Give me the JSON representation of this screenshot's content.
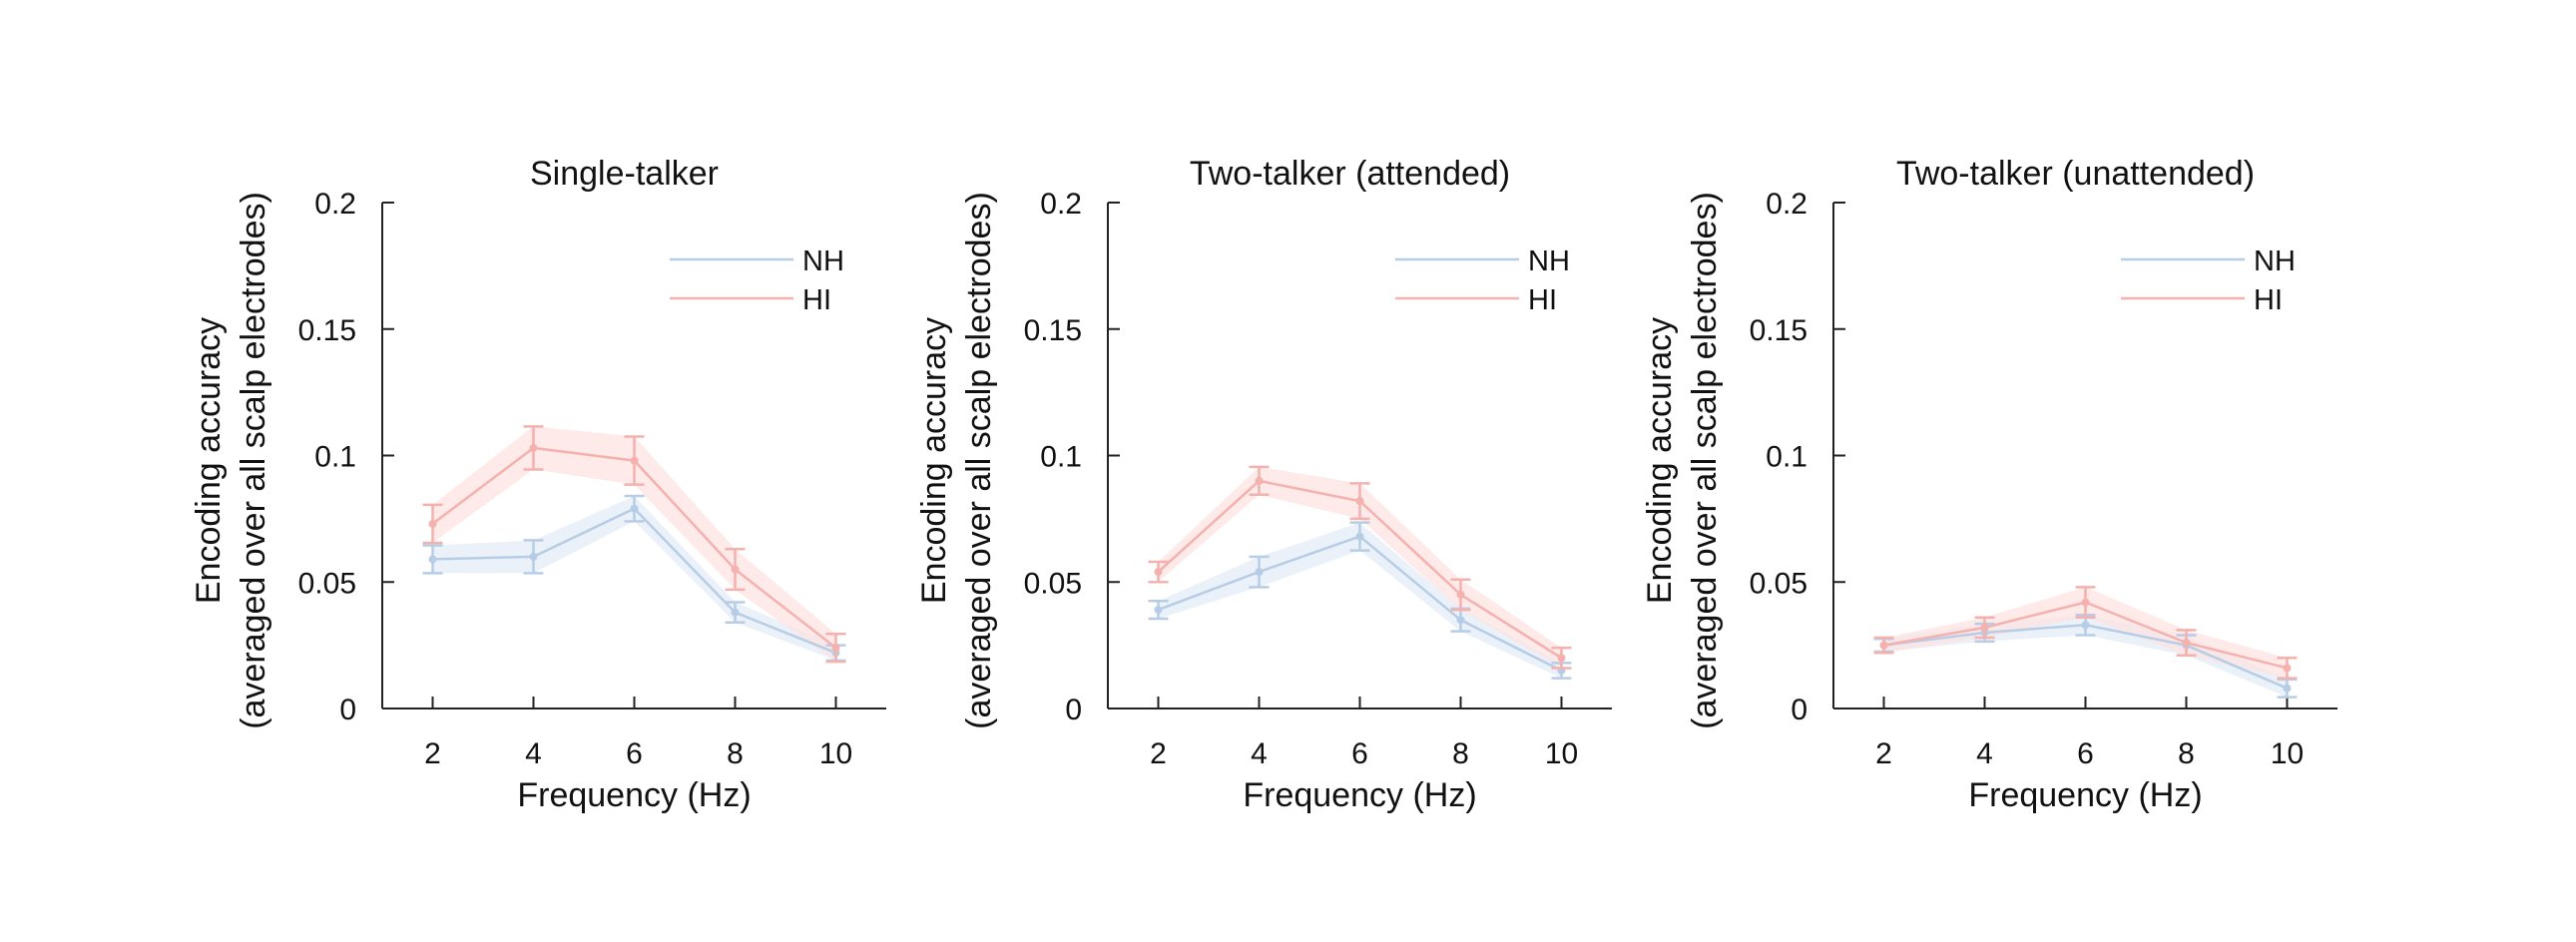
{
  "chart_data": [
    {
      "type": "line",
      "title": "Single-talker",
      "xlabel": "Frequency (Hz)",
      "ylabel": [
        "Encoding accuracy",
        "(averaged over all scalp electrodes)"
      ],
      "x": [
        2,
        4,
        6,
        8,
        10
      ],
      "xticks": [
        "2",
        "4",
        "6",
        "8",
        "10"
      ],
      "yticks": [
        "0",
        "0.05",
        "0.1",
        "0.15",
        "0.2"
      ],
      "xlim": [
        1,
        11
      ],
      "ylim": [
        0,
        0.2
      ],
      "legend_position": "top-right",
      "series": [
        {
          "name": "NH",
          "color": "#b7cde6",
          "band_color": "#e3ecf7",
          "values": [
            0.059,
            0.06,
            0.079,
            0.038,
            0.022
          ],
          "err": [
            0.0055,
            0.0065,
            0.005,
            0.004,
            0.003
          ]
        },
        {
          "name": "HI",
          "color": "#f4b1ae",
          "band_color": "#fce3e2",
          "values": [
            0.073,
            0.103,
            0.098,
            0.055,
            0.024
          ],
          "err": [
            0.0075,
            0.0085,
            0.0095,
            0.008,
            0.0055
          ]
        }
      ]
    },
    {
      "type": "line",
      "title": "Two-talker (attended)",
      "xlabel": "Frequency (Hz)",
      "ylabel": [
        "Encoding accuracy",
        "(averaged over all scalp electrodes)"
      ],
      "x": [
        2,
        4,
        6,
        8,
        10
      ],
      "xticks": [
        "2",
        "4",
        "6",
        "8",
        "10"
      ],
      "yticks": [
        "0",
        "0.05",
        "0.1",
        "0.15",
        "0.2"
      ],
      "xlim": [
        1,
        11
      ],
      "ylim": [
        0,
        0.2
      ],
      "legend_position": "top-right",
      "series": [
        {
          "name": "NH",
          "color": "#b7cde6",
          "band_color": "#e3ecf7",
          "values": [
            0.039,
            0.054,
            0.068,
            0.035,
            0.015
          ],
          "err": [
            0.0035,
            0.006,
            0.0055,
            0.0045,
            0.003
          ]
        },
        {
          "name": "HI",
          "color": "#f4b1ae",
          "band_color": "#fce3e2",
          "values": [
            0.054,
            0.09,
            0.082,
            0.045,
            0.02
          ],
          "err": [
            0.004,
            0.0055,
            0.007,
            0.006,
            0.004
          ]
        }
      ]
    },
    {
      "type": "line",
      "title": "Two-talker (unattended)",
      "xlabel": "Frequency (Hz)",
      "ylabel": [
        "Encoding accuracy",
        "(averaged over all scalp electrodes)"
      ],
      "x": [
        2,
        4,
        6,
        8,
        10
      ],
      "xticks": [
        "2",
        "4",
        "6",
        "8",
        "10"
      ],
      "yticks": [
        "0",
        "0.05",
        "0.1",
        "0.15",
        "0.2"
      ],
      "xlim": [
        1,
        11
      ],
      "ylim": [
        0,
        0.2
      ],
      "legend_position": "top-right",
      "series": [
        {
          "name": "NH",
          "color": "#b7cde6",
          "band_color": "#e3ecf7",
          "values": [
            0.025,
            0.03,
            0.033,
            0.025,
            0.008
          ],
          "err": [
            0.0025,
            0.0035,
            0.004,
            0.004,
            0.0035
          ]
        },
        {
          "name": "HI",
          "color": "#f4b1ae",
          "band_color": "#fce3e2",
          "values": [
            0.025,
            0.032,
            0.042,
            0.026,
            0.016
          ],
          "err": [
            0.003,
            0.004,
            0.006,
            0.005,
            0.004
          ]
        }
      ]
    }
  ]
}
